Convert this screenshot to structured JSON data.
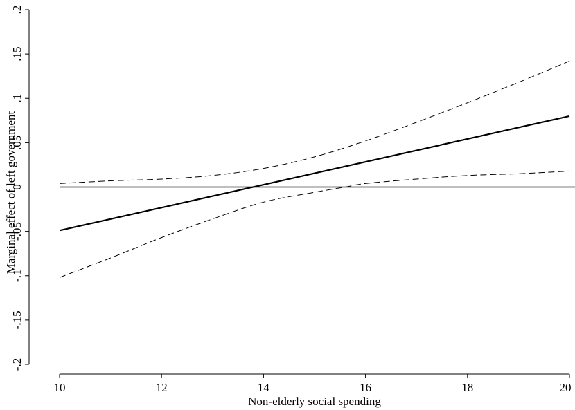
{
  "chart_data": {
    "type": "line",
    "title": "",
    "xlabel": "Non-elderly social spending",
    "ylabel": "Marginal effect of left government",
    "xlim": [
      10,
      20
    ],
    "ylim": [
      -0.2,
      0.2
    ],
    "x_ticks": [
      10,
      12,
      14,
      16,
      18,
      20
    ],
    "x_tick_labels": [
      "10",
      "12",
      "14",
      "16",
      "18",
      "20"
    ],
    "y_ticks": [
      -0.2,
      -0.15,
      -0.1,
      -0.05,
      0,
      0.05,
      0.1,
      0.15,
      0.2
    ],
    "y_tick_labels": [
      "-.2",
      "-.15",
      "-.1",
      "-.05",
      "0",
      ".05",
      ".1",
      ".15",
      ".2"
    ],
    "reference_line_y": 0,
    "grid": false,
    "legend": "none",
    "series": [
      {
        "style": "solid",
        "x": [
          10,
          20
        ],
        "values": [
          -0.049,
          0.08
        ]
      },
      {
        "style": "dashed",
        "x": [
          10,
          11,
          12,
          13,
          14,
          15,
          16,
          17,
          18,
          19,
          20
        ],
        "values": [
          0.004,
          0.007,
          0.009,
          0.013,
          0.021,
          0.034,
          0.052,
          0.073,
          0.095,
          0.118,
          0.142
        ]
      },
      {
        "style": "dashed",
        "x": [
          10,
          11,
          12,
          13,
          14,
          15,
          15.6,
          16,
          17,
          18,
          19,
          20
        ],
        "values": [
          -0.102,
          -0.08,
          -0.057,
          -0.036,
          -0.017,
          -0.006,
          0,
          0.004,
          0.009,
          0.013,
          0.015,
          0.018
        ]
      }
    ]
  }
}
